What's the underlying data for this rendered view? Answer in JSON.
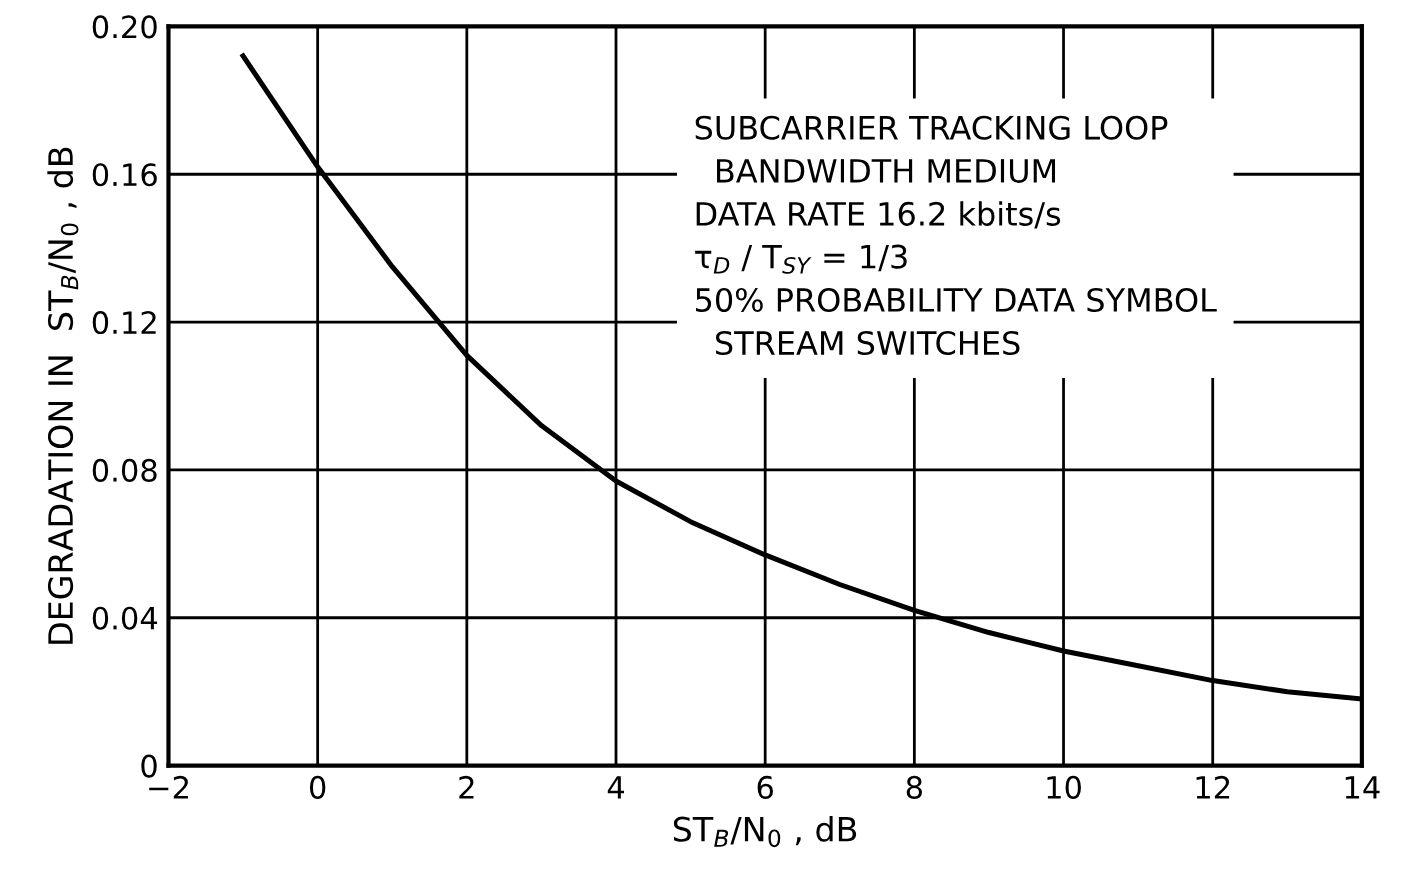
{
  "chart_data": {
    "type": "line",
    "xlabel": "ST$_{B}$/N$_{0}$ , dB",
    "ylabel": "DEGRADATION IN  ST$_{B}$/N$_{0}$ , dB",
    "annotations": [
      "SUBCARRIER TRACKING LOOP\n  BANDWIDTH MEDIUM\nDATA RATE 16.2 kbits/s\nτ$_{D}$ / T$_{SY}$ = 1/3\n50% PROBABILITY DATA SYMBOL\n  STREAM SWITCHES"
    ],
    "x": [
      -1,
      0,
      1,
      2,
      3,
      4,
      5,
      6,
      7,
      8,
      9,
      10,
      11,
      12,
      13,
      14
    ],
    "series": [
      {
        "color": "#000000",
        "values": [
          0.192,
          0.162,
          0.135,
          0.111,
          0.092,
          0.077,
          0.066,
          0.057,
          0.049,
          0.042,
          0.036,
          0.031,
          0.027,
          0.023,
          0.02,
          0.018
        ]
      }
    ],
    "xlim": [
      -2,
      14
    ],
    "xticks": [
      {
        "value": -2,
        "label": "−2"
      },
      0,
      2,
      4,
      6,
      8,
      10,
      12,
      14
    ],
    "ylim": [
      0,
      0.2
    ],
    "yticks": [
      0,
      {
        "value": 0.04,
        "label": "0.04"
      },
      {
        "value": 0.08,
        "label": "0.08"
      },
      {
        "value": 0.12,
        "label": "0.12"
      },
      {
        "value": 0.16,
        "label": "0.16"
      },
      {
        "value": 0.2,
        "label": "0.20"
      }
    ],
    "grid": true,
    "marker": "none",
    "line_style": "solid"
  }
}
